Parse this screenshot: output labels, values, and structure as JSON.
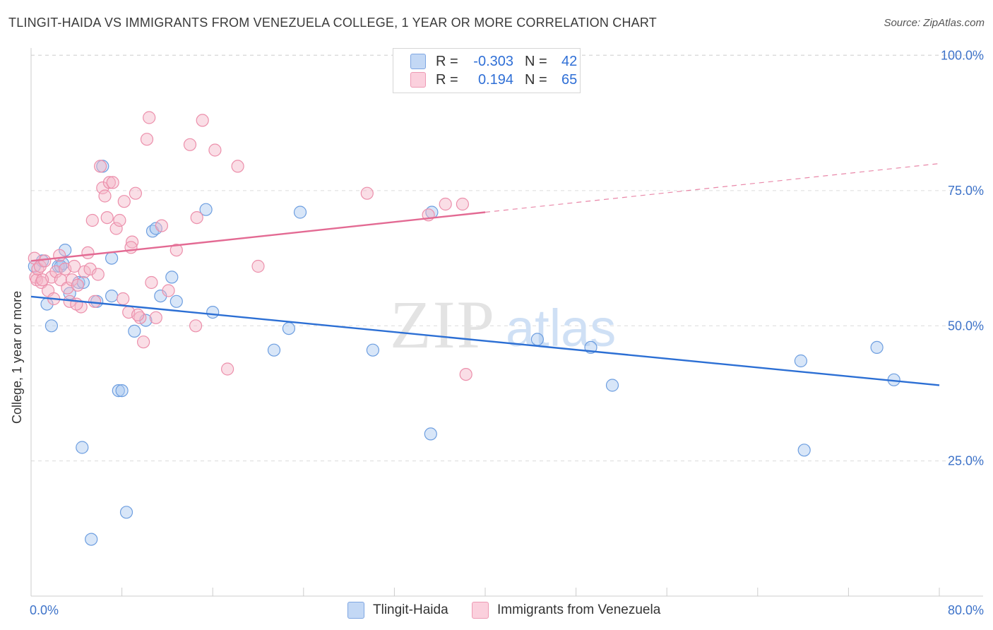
{
  "header": {
    "title": "TLINGIT-HAIDA VS IMMIGRANTS FROM VENEZUELA COLLEGE, 1 YEAR OR MORE CORRELATION CHART",
    "source": "Source: ZipAtlas.com"
  },
  "watermark": {
    "zip": "ZIP",
    "atlas": "atlas"
  },
  "stats_legend": {
    "rows": [
      {
        "r_label": "R =",
        "r_value": "-0.303",
        "n_label": "N =",
        "n_value": "42",
        "color": "#a9c8f0"
      },
      {
        "r_label": "R =",
        "r_value": "0.194",
        "n_label": "N =",
        "n_value": "65",
        "color": "#f5b6c8"
      }
    ]
  },
  "bottom_legend": [
    {
      "label": "Tlingit-Haida",
      "color": "#a9c8f0"
    },
    {
      "label": "Immigrants from Venezuela",
      "color": "#f5b6c8"
    }
  ],
  "chart_data": {
    "type": "scatter",
    "title": "TLINGIT-HAIDA VS IMMIGRANTS FROM VENEZUELA COLLEGE, 1 YEAR OR MORE CORRELATION CHART",
    "xlabel": "",
    "ylabel": "College, 1 year or more",
    "xlim": [
      0,
      80
    ],
    "ylim": [
      0,
      100
    ],
    "x_tick_labels": [
      "0.0%",
      "80.0%"
    ],
    "y_ticks": [
      25,
      50,
      75,
      100
    ],
    "y_tick_labels": [
      "25.0%",
      "50.0%",
      "75.0%",
      "100.0%"
    ],
    "grid": true,
    "legend_position": "top-center",
    "series": [
      {
        "name": "Tlingit-Haida",
        "color": "#a9c8f0",
        "stroke": "#6d9ee0",
        "trend": {
          "x": [
            0,
            80
          ],
          "y": [
            55.4,
            39.0
          ],
          "color": "#2c6fd4",
          "style": "solid"
        },
        "points": [
          [
            0.3,
            61.0
          ],
          [
            1.0,
            62.0
          ],
          [
            1.4,
            54.0
          ],
          [
            1.8,
            50.0
          ],
          [
            2.4,
            61.0
          ],
          [
            2.8,
            61.5
          ],
          [
            3.0,
            64.0
          ],
          [
            3.4,
            56.0
          ],
          [
            4.2,
            58.0
          ],
          [
            4.5,
            27.5
          ],
          [
            4.6,
            58.0
          ],
          [
            5.3,
            10.5
          ],
          [
            5.8,
            54.5
          ],
          [
            6.3,
            79.5
          ],
          [
            7.1,
            55.5
          ],
          [
            7.1,
            62.5
          ],
          [
            7.7,
            38.0
          ],
          [
            8.0,
            38.0
          ],
          [
            8.4,
            15.5
          ],
          [
            9.1,
            49.0
          ],
          [
            10.1,
            51.0
          ],
          [
            10.7,
            67.5
          ],
          [
            11.0,
            68.0
          ],
          [
            11.4,
            55.5
          ],
          [
            12.4,
            59.0
          ],
          [
            12.8,
            54.5
          ],
          [
            15.4,
            71.5
          ],
          [
            16.0,
            52.5
          ],
          [
            21.4,
            45.5
          ],
          [
            22.7,
            49.5
          ],
          [
            23.7,
            71.0
          ],
          [
            30.1,
            45.5
          ],
          [
            35.2,
            30.0
          ],
          [
            35.3,
            71.0
          ],
          [
            44.6,
            47.5
          ],
          [
            49.3,
            46.0
          ],
          [
            51.2,
            39.0
          ],
          [
            67.8,
            43.5
          ],
          [
            68.1,
            27.0
          ],
          [
            74.5,
            46.0
          ],
          [
            76.0,
            40.0
          ],
          [
            2.6,
            61.0
          ]
        ]
      },
      {
        "name": "Immigrants from Venezuela",
        "color": "#f5b6c8",
        "stroke": "#ec8fab",
        "trend": {
          "x": [
            0,
            40
          ],
          "y": [
            62.0,
            71.0
          ],
          "color": "#e36a93",
          "style": "solid",
          "extension": {
            "x": [
              40,
              80
            ],
            "y": [
              71.0,
              80.0
            ],
            "style": "dashed"
          }
        },
        "points": [
          [
            0.3,
            62.5
          ],
          [
            0.4,
            59.0
          ],
          [
            0.5,
            58.5
          ],
          [
            0.6,
            60.5
          ],
          [
            0.8,
            61.0
          ],
          [
            0.9,
            58.0
          ],
          [
            1.2,
            62.0
          ],
          [
            1.5,
            56.5
          ],
          [
            1.8,
            59.0
          ],
          [
            2.2,
            60.0
          ],
          [
            2.5,
            63.0
          ],
          [
            2.6,
            58.5
          ],
          [
            3.0,
            60.5
          ],
          [
            3.2,
            57.0
          ],
          [
            3.4,
            54.5
          ],
          [
            3.6,
            58.5
          ],
          [
            3.8,
            61.0
          ],
          [
            4.1,
            57.5
          ],
          [
            4.4,
            53.5
          ],
          [
            4.7,
            60.0
          ],
          [
            5.0,
            63.5
          ],
          [
            5.2,
            60.5
          ],
          [
            5.4,
            69.5
          ],
          [
            5.6,
            54.5
          ],
          [
            5.9,
            59.5
          ],
          [
            6.1,
            79.5
          ],
          [
            6.3,
            75.5
          ],
          [
            6.5,
            74.0
          ],
          [
            6.7,
            70.0
          ],
          [
            6.9,
            76.5
          ],
          [
            7.2,
            76.5
          ],
          [
            7.5,
            68.0
          ],
          [
            7.8,
            69.5
          ],
          [
            8.1,
            55.0
          ],
          [
            8.2,
            73.0
          ],
          [
            8.6,
            52.5
          ],
          [
            8.9,
            65.5
          ],
          [
            9.2,
            74.5
          ],
          [
            9.6,
            51.5
          ],
          [
            9.9,
            47.0
          ],
          [
            10.2,
            84.5
          ],
          [
            10.4,
            88.5
          ],
          [
            10.6,
            58.0
          ],
          [
            11.0,
            51.5
          ],
          [
            11.5,
            68.5
          ],
          [
            12.1,
            56.5
          ],
          [
            12.8,
            64.0
          ],
          [
            14.0,
            83.5
          ],
          [
            14.5,
            50.0
          ],
          [
            15.1,
            88.0
          ],
          [
            16.2,
            82.5
          ],
          [
            17.3,
            42.0
          ],
          [
            18.2,
            79.5
          ],
          [
            20.0,
            61.0
          ],
          [
            29.6,
            74.5
          ],
          [
            35.0,
            70.5
          ],
          [
            36.5,
            72.5
          ],
          [
            38.0,
            72.5
          ],
          [
            38.3,
            41.0
          ],
          [
            14.6,
            70.0
          ],
          [
            2.0,
            55.0
          ],
          [
            4.0,
            54.0
          ],
          [
            8.8,
            64.5
          ],
          [
            1.0,
            58.5
          ],
          [
            9.4,
            52.0
          ]
        ]
      }
    ]
  }
}
